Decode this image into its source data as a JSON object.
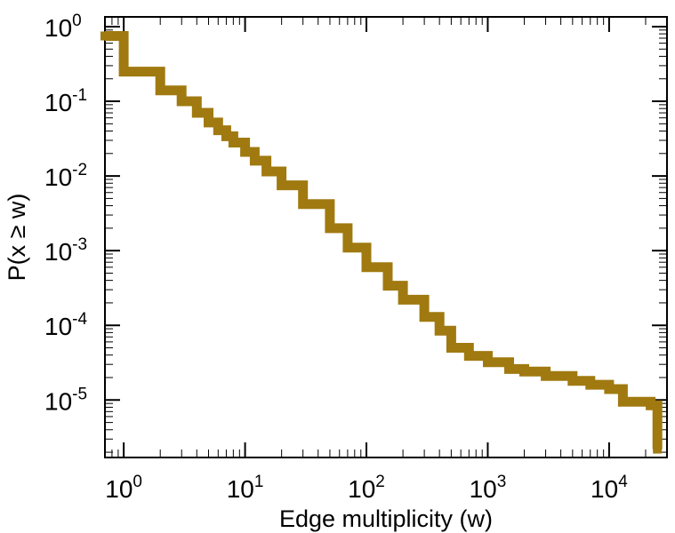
{
  "chart_data": {
    "type": "line",
    "xlabel": "Edge multiplicity (w)",
    "ylabel": "P(x ≥ w)",
    "x_scale": "log",
    "y_scale": "log",
    "xlim": [
      0.7,
      30000
    ],
    "ylim": [
      1.7e-06,
      1.35
    ],
    "x_ticks": [
      {
        "value": 1,
        "base": "10",
        "exp": "0"
      },
      {
        "value": 10,
        "base": "10",
        "exp": "1"
      },
      {
        "value": 100,
        "base": "10",
        "exp": "2"
      },
      {
        "value": 1000,
        "base": "10",
        "exp": "3"
      },
      {
        "value": 10000,
        "base": "10",
        "exp": "4"
      }
    ],
    "y_ticks": [
      {
        "value": 1,
        "base": "10",
        "exp": "0"
      },
      {
        "value": 0.1,
        "base": "10",
        "exp": "-1"
      },
      {
        "value": 0.01,
        "base": "10",
        "exp": "-2"
      },
      {
        "value": 0.001,
        "base": "10",
        "exp": "-3"
      },
      {
        "value": 0.0001,
        "base": "10",
        "exp": "-4"
      },
      {
        "value": 1e-05,
        "base": "10",
        "exp": "-5"
      }
    ],
    "grid": false,
    "series": [
      {
        "color": "#a07a10",
        "step": true,
        "x": [
          0.7,
          1,
          2,
          3,
          4,
          5,
          6,
          7,
          8,
          10,
          12,
          15,
          20,
          30,
          50,
          70,
          100,
          150,
          200,
          300,
          400,
          500,
          700,
          1000,
          1500,
          2000,
          3000,
          5000,
          7000,
          10000,
          13000,
          22000,
          25000
        ],
        "y": [
          0.75,
          0.25,
          0.14,
          0.1,
          0.07,
          0.052,
          0.041,
          0.034,
          0.028,
          0.021,
          0.016,
          0.0115,
          0.0075,
          0.0042,
          0.002,
          0.0011,
          0.0006,
          0.00034,
          0.00022,
          0.00013,
          8.5e-05,
          5e-05,
          3.9e-05,
          3.2e-05,
          2.6e-05,
          2.4e-05,
          2.1e-05,
          1.8e-05,
          1.6e-05,
          1.4e-05,
          9.5e-06,
          8.5e-06,
          2.2e-06
        ]
      }
    ]
  }
}
